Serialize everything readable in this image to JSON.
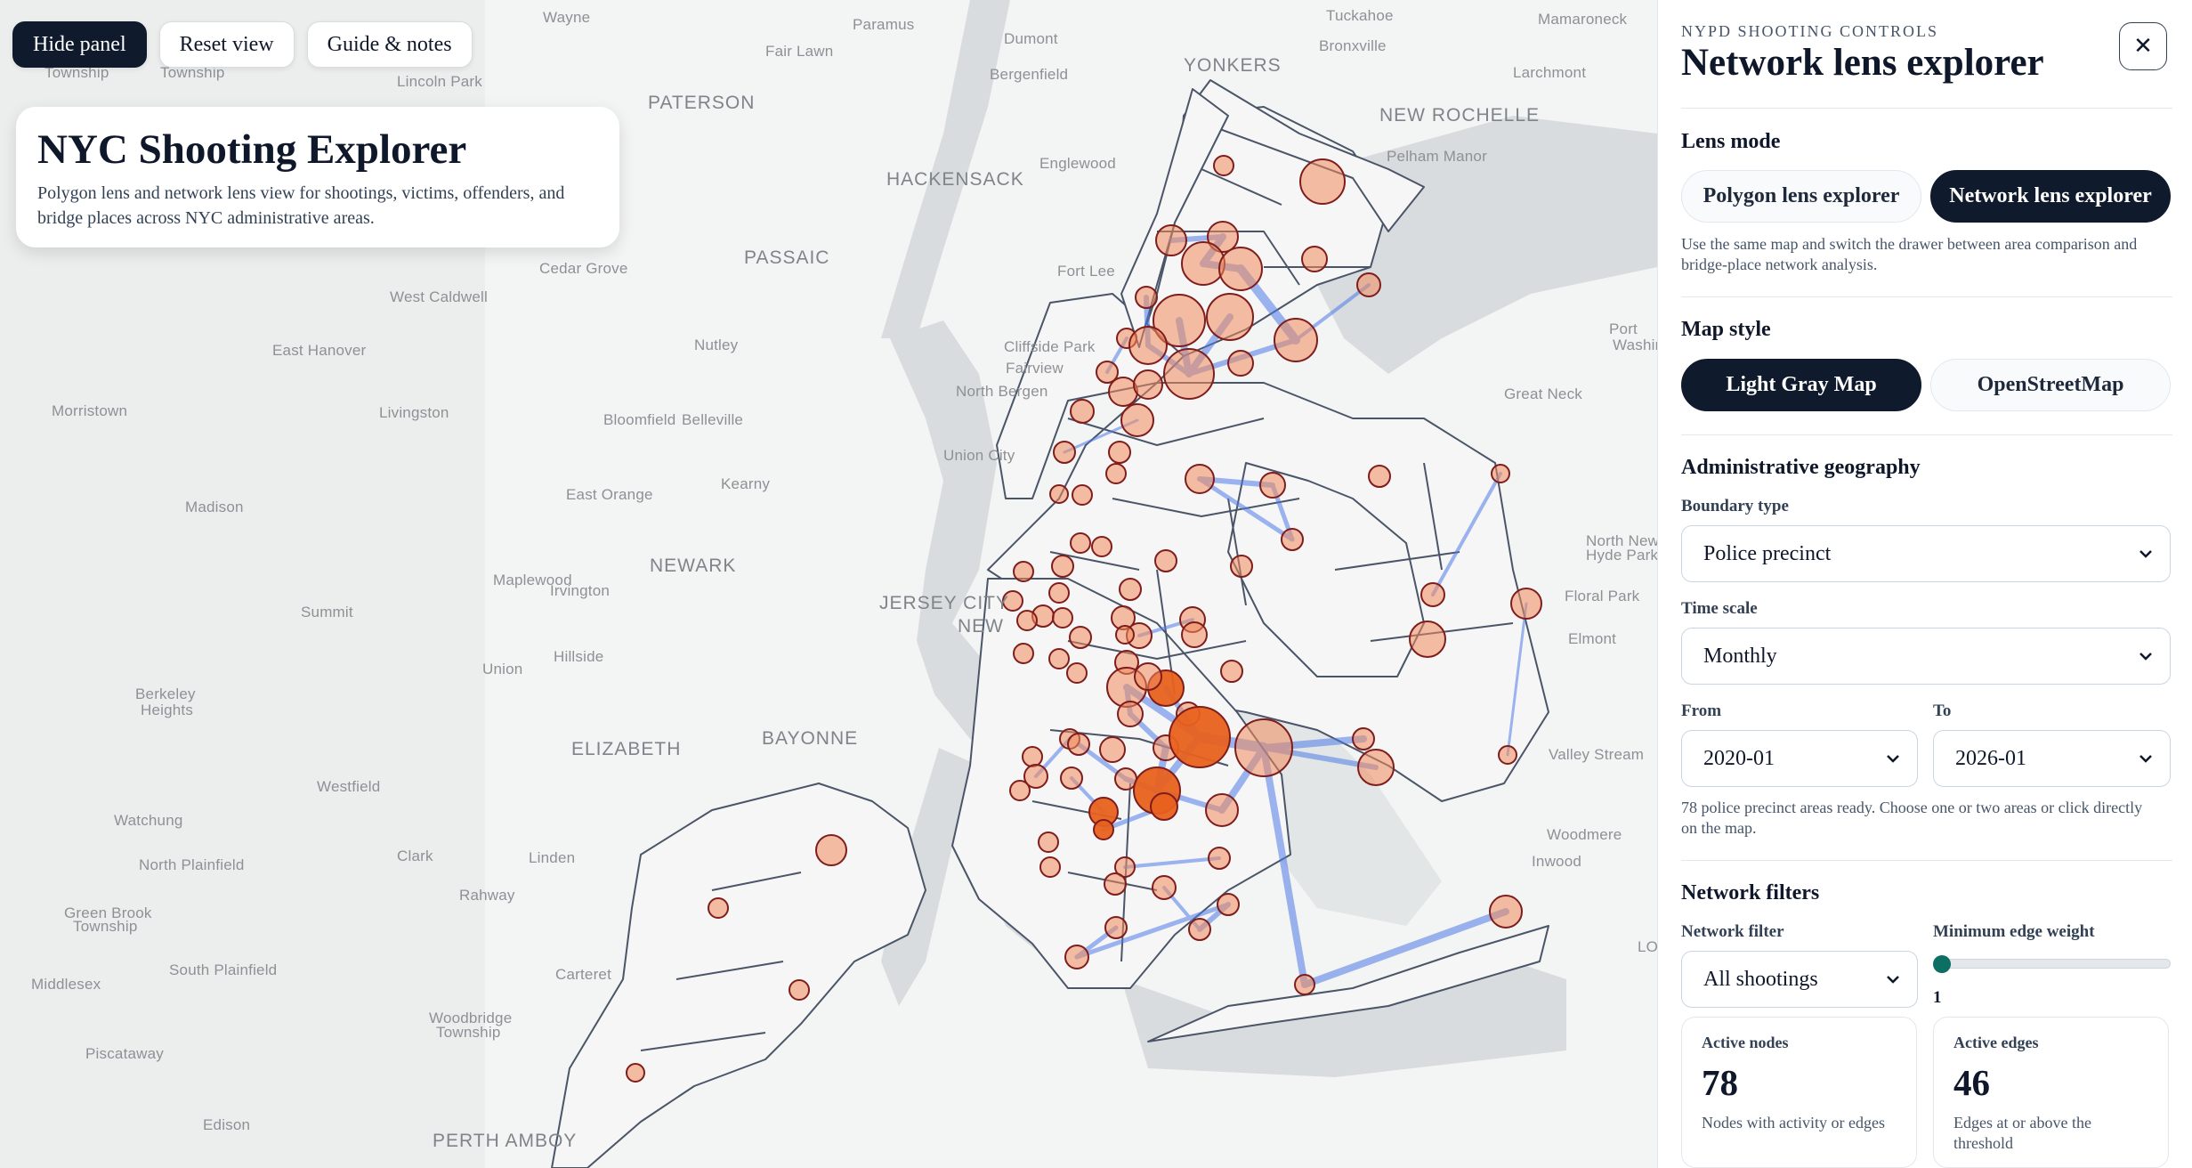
{
  "toolbar": {
    "hide_panel": "Hide panel",
    "reset_view": "Reset view",
    "guide_notes": "Guide & notes"
  },
  "title_card": {
    "title": "NYC Shooting Explorer",
    "subtitle": "Polygon lens and network lens view for shootings, victims, offenders, and bridge places across NYC administrative areas."
  },
  "map_labels": [
    {
      "text": "Wayne",
      "big": false
    },
    {
      "text": "Paramus",
      "big": false
    },
    {
      "text": "Dumont",
      "big": false
    },
    {
      "text": "Tuckahoe",
      "big": false
    },
    {
      "text": "Mamaroneck",
      "big": false
    },
    {
      "text": "Fair Lawn",
      "big": false
    },
    {
      "text": "Bergenfield",
      "big": false
    },
    {
      "text": "YONKERS",
      "big": true
    },
    {
      "text": "Bronxville",
      "big": false
    },
    {
      "text": "Larchmont",
      "big": false
    },
    {
      "text": "Township",
      "big": false
    },
    {
      "text": "Township",
      "big": false
    },
    {
      "text": "Lincoln Park",
      "big": false
    },
    {
      "text": "PATERSON",
      "big": true
    },
    {
      "text": "NEW ROCHELLE",
      "big": true
    },
    {
      "text": "Pelham Manor",
      "big": false
    },
    {
      "text": "HACKENSACK",
      "big": true
    },
    {
      "text": "Englewood",
      "big": false
    },
    {
      "text": "PASSAIC",
      "big": true
    },
    {
      "text": "Cedar Grove",
      "big": false
    },
    {
      "text": "Fort Lee",
      "big": false
    },
    {
      "text": "West Caldwell",
      "big": false
    },
    {
      "text": "Nutley",
      "big": false
    },
    {
      "text": "Cliffside Park",
      "big": false
    },
    {
      "text": "Fairview",
      "big": false
    },
    {
      "text": "Port",
      "big": false
    },
    {
      "text": "Washington",
      "big": false
    },
    {
      "text": "East Hanover",
      "big": false
    },
    {
      "text": "North Bergen",
      "big": false
    },
    {
      "text": "Great Neck",
      "big": false
    },
    {
      "text": "Morristown",
      "big": false
    },
    {
      "text": "Livingston",
      "big": false
    },
    {
      "text": "Bloomfield",
      "big": false
    },
    {
      "text": "Belleville",
      "big": false
    },
    {
      "text": "Union City",
      "big": false
    },
    {
      "text": "Kearny",
      "big": false
    },
    {
      "text": "Madison",
      "big": false
    },
    {
      "text": "East Orange",
      "big": false
    },
    {
      "text": "North New",
      "big": false
    },
    {
      "text": "Hyde Park",
      "big": false
    },
    {
      "text": "NEWARK",
      "big": true
    },
    {
      "text": "Maplewood",
      "big": false
    },
    {
      "text": "Irvington",
      "big": false
    },
    {
      "text": "Summit",
      "big": false
    },
    {
      "text": "JERSEY CITY",
      "big": true
    },
    {
      "text": "NEW",
      "big": true
    },
    {
      "text": "Floral Park",
      "big": false
    },
    {
      "text": "Elmont",
      "big": false
    },
    {
      "text": "Hillside",
      "big": false
    },
    {
      "text": "Union",
      "big": false
    },
    {
      "text": "Berkeley",
      "big": false
    },
    {
      "text": "Heights",
      "big": false
    },
    {
      "text": "BAYONNE",
      "big": true
    },
    {
      "text": "ELIZABETH",
      "big": true
    },
    {
      "text": "Valley Stream",
      "big": false
    },
    {
      "text": "Westfield",
      "big": false
    },
    {
      "text": "Watchung",
      "big": false
    },
    {
      "text": "Woodmere",
      "big": false
    },
    {
      "text": "Clark",
      "big": false
    },
    {
      "text": "Linden",
      "big": false
    },
    {
      "text": "North Plainfield",
      "big": false
    },
    {
      "text": "Inwood",
      "big": false
    },
    {
      "text": "Rahway",
      "big": false
    },
    {
      "text": "Green Brook",
      "big": false
    },
    {
      "text": "Township",
      "big": false
    },
    {
      "text": "LO",
      "big": false
    },
    {
      "text": "South Plainfield",
      "big": false
    },
    {
      "text": "Carteret",
      "big": false
    },
    {
      "text": "Middlesex",
      "big": false
    },
    {
      "text": "Woodbridge",
      "big": false
    },
    {
      "text": "Township",
      "big": false
    },
    {
      "text": "Piscataway",
      "big": false
    },
    {
      "text": "Edison",
      "big": false
    },
    {
      "text": "PERTH AMBOY",
      "big": true
    }
  ],
  "panel": {
    "eyebrow": "NYPD SHOOTING CONTROLS",
    "title": "Network lens explorer",
    "lens_mode": {
      "heading": "Lens mode",
      "options": [
        "Polygon lens explorer",
        "Network lens explorer"
      ],
      "active": "Network lens explorer",
      "note": "Use the same map and switch the drawer between area comparison and bridge-place network analysis."
    },
    "map_style": {
      "heading": "Map style",
      "options": [
        "Light Gray Map",
        "OpenStreetMap"
      ],
      "active": "Light Gray Map"
    },
    "geography": {
      "heading": "Administrative geography",
      "boundary_label": "Boundary type",
      "boundary_value": "Police precinct",
      "time_label": "Time scale",
      "time_value": "Monthly",
      "from_label": "From",
      "from_value": "2020-01",
      "to_label": "To",
      "to_value": "2026-01",
      "status": "78 police precinct areas ready. Choose one or two areas or click directly on the map."
    },
    "filters": {
      "heading": "Network filters",
      "network_label": "Network filter",
      "network_value": "All shootings",
      "weight_label": "Minimum edge weight",
      "weight_value": "1",
      "weight_fraction": 0.0
    },
    "stats": [
      {
        "key": "Active nodes",
        "value": "78",
        "desc": "Nodes with activity or edges"
      },
      {
        "key": "Active edges",
        "value": "46",
        "desc": "Edges at or above the threshold"
      }
    ]
  },
  "colors": {
    "node_fill": "#f08a5d",
    "node_fill_strong": "#e8611d",
    "node_stroke": "#7f1d1d",
    "edge": "#4f7be8",
    "boundary": "#4a5568",
    "panel_dark": "#0f1b2d"
  }
}
